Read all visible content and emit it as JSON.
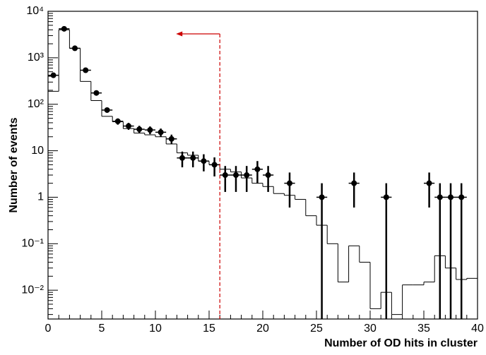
{
  "chart_data": {
    "type": "histogram",
    "xlabel": "Number of OD hits in cluster",
    "ylabel": "Number of events",
    "log_y": true,
    "xlim": [
      0,
      40
    ],
    "ylim": [
      0.0024,
      10000
    ],
    "xticks": [
      0,
      5,
      10,
      15,
      20,
      25,
      30,
      35,
      40
    ],
    "yticks": [
      {
        "value": 0.01,
        "label": "10⁻²"
      },
      {
        "value": 0.1,
        "label": "10⁻¹"
      },
      1,
      10,
      {
        "value": 100,
        "label": "10²"
      },
      {
        "value": 1000,
        "label": "10³"
      },
      {
        "value": 10000,
        "label": "10⁴"
      }
    ],
    "cut_x": 16,
    "cut_color": "#cc0000",
    "histogram": {
      "color": "#000000",
      "bins": [
        0,
        1,
        2,
        3,
        4,
        5,
        6,
        7,
        8,
        9,
        10,
        11,
        12,
        13,
        14,
        15,
        16,
        17,
        18,
        19,
        20,
        21,
        22,
        23,
        24,
        25,
        26,
        27,
        28,
        29,
        30,
        31,
        32,
        33,
        34,
        35,
        36,
        37,
        38,
        39,
        40
      ],
      "counts": [
        190,
        4000,
        1600,
        310,
        120,
        55,
        42,
        30,
        24,
        22,
        20,
        14,
        9,
        8,
        6,
        5,
        4,
        3.5,
        2.6,
        2,
        1.7,
        1.2,
        1.1,
        0.9,
        0.4,
        0.25,
        0.1,
        0.015,
        0.09,
        0.04,
        0.004,
        0.009,
        0.003,
        0.013,
        0.013,
        0.015,
        0.055,
        0.03,
        0.017,
        0.018
      ]
    },
    "points": {
      "color": "#000000",
      "x": [
        0.5,
        1.5,
        2.5,
        3.5,
        4.5,
        5.5,
        6.5,
        7.5,
        8.5,
        9.5,
        10.5,
        11.5,
        12.5,
        13.5,
        14.5,
        15.5,
        16.5,
        17.5,
        18.5,
        19.5,
        20.5,
        22.5,
        25.5,
        28.5,
        31.5,
        35.5,
        36.5,
        37.5,
        38.5
      ],
      "values": [
        420,
        4200,
        1600,
        540,
        175,
        75,
        43,
        34,
        29,
        28,
        25,
        18,
        7,
        7,
        6,
        5,
        3,
        3,
        3,
        4,
        3,
        2,
        1,
        2,
        1,
        2,
        1,
        1,
        1
      ],
      "errors": [
        20.5,
        64.8,
        40,
        23.2,
        13.2,
        8.7,
        6.6,
        5.8,
        5.4,
        5.3,
        5,
        4.2,
        2.6,
        2.6,
        2.4,
        2.2,
        1.7,
        1.7,
        1.7,
        2,
        1.7,
        1.4,
        1,
        1.4,
        1,
        1.4,
        1,
        1,
        1
      ]
    }
  }
}
